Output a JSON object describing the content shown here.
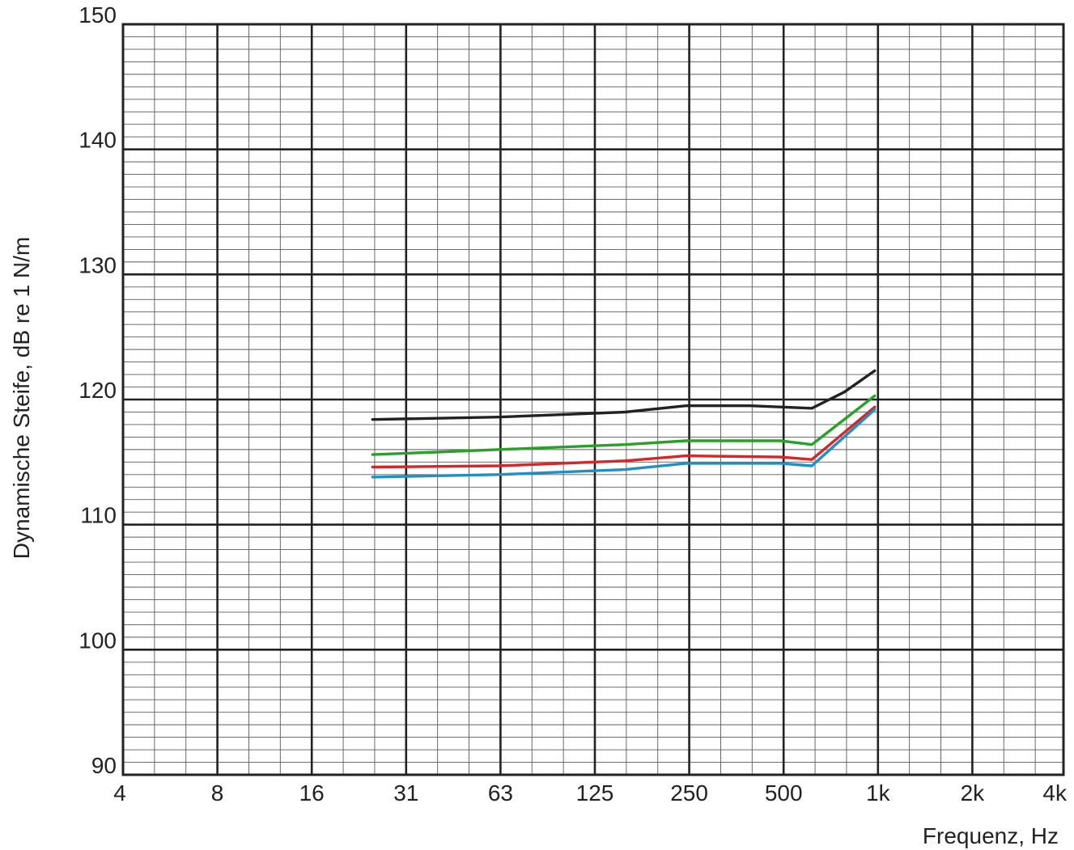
{
  "chart_data": {
    "type": "line",
    "title": "",
    "xlabel": "Frequenz, Hz",
    "ylabel": "Dynamische Steife, dB re 1 N/m",
    "x_scale": "log2",
    "x_ticks": [
      {
        "value": 4,
        "label": "4"
      },
      {
        "value": 8,
        "label": "8"
      },
      {
        "value": 16,
        "label": "16"
      },
      {
        "value": 31.5,
        "label": "31"
      },
      {
        "value": 63,
        "label": "63"
      },
      {
        "value": 125,
        "label": "125"
      },
      {
        "value": 250,
        "label": "250"
      },
      {
        "value": 500,
        "label": "500"
      },
      {
        "value": 1000,
        "label": "1k"
      },
      {
        "value": 2000,
        "label": "2k"
      },
      {
        "value": 4000,
        "label": "4k"
      }
    ],
    "y_ticks": [
      {
        "value": 90,
        "label": "90"
      },
      {
        "value": 100,
        "label": "100"
      },
      {
        "value": 110,
        "label": "110"
      },
      {
        "value": 120,
        "label": "120"
      },
      {
        "value": 130,
        "label": "130"
      },
      {
        "value": 140,
        "label": "140"
      },
      {
        "value": 150,
        "label": "150"
      }
    ],
    "xlim": [
      4,
      4000
    ],
    "ylim": [
      90,
      150
    ],
    "grid": true,
    "x_minor_per_major": 3,
    "y_minor_per_major": 10,
    "legend": "none",
    "series": [
      {
        "color": "#222222",
        "x": [
          25,
          63,
          160,
          250,
          400,
          630,
          800,
          1000
        ],
        "y": [
          118.4,
          118.6,
          119.0,
          119.5,
          119.5,
          119.3,
          120.6,
          122.3
        ]
      },
      {
        "color": "#2aa02a",
        "x": [
          25,
          40,
          80,
          160,
          250,
          500,
          630,
          1000
        ],
        "y": [
          115.6,
          115.8,
          116.1,
          116.4,
          116.7,
          116.7,
          116.4,
          120.3
        ]
      },
      {
        "color": "#d62728",
        "x": [
          25,
          63,
          160,
          250,
          500,
          630,
          1000
        ],
        "y": [
          114.6,
          114.7,
          115.1,
          115.5,
          115.4,
          115.2,
          119.4
        ]
      },
      {
        "color": "#1f8fc4",
        "x": [
          25,
          63,
          160,
          250,
          500,
          630,
          1000
        ],
        "y": [
          113.8,
          114.0,
          114.4,
          114.9,
          114.9,
          114.7,
          119.2
        ]
      }
    ]
  }
}
